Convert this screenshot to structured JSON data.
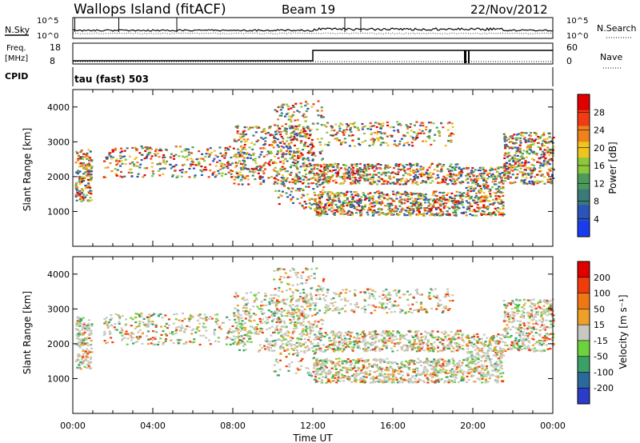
{
  "header": {
    "title": "Wallops Island (fitACF)",
    "beam": "Beam 19",
    "date": "22/Nov/2012"
  },
  "noise_panel": {
    "left_label": "N.Sky",
    "right_label": "N.Search",
    "tick_top": "10^5",
    "tick_bottom": "10^0"
  },
  "freq_panel": {
    "left_label_1": "Freq.",
    "left_label_2": "[MHz]",
    "right_label": "Nave",
    "left_ticks": [
      "18",
      "8"
    ],
    "right_ticks": [
      "60",
      "0"
    ],
    "cpid_label": "CPID",
    "mode": "tau (fast) 503"
  },
  "colors": {
    "power_scale": [
      "#1a3cf0",
      "#2a54b8",
      "#3a7a78",
      "#4c9a5a",
      "#8cc83c",
      "#f0c41e",
      "#f0821e",
      "#f03c14",
      "#e00000"
    ],
    "velocity_scale": [
      "#2a3cc8",
      "#2a6a9a",
      "#3aa066",
      "#6ed23c",
      "#c8c8c0",
      "#f0a028",
      "#f07814",
      "#f03c0a",
      "#e00000"
    ]
  },
  "chart_data": [
    {
      "type": "heatmap",
      "name": "power",
      "xlabel": "",
      "ylabel": "Slant Range [km]",
      "x_ticks": [
        "00:00",
        "04:00",
        "08:00",
        "12:00",
        "16:00",
        "20:00",
        "00:00"
      ],
      "y_ticks": [
        1000,
        2000,
        3000,
        4000
      ],
      "ylim": [
        0,
        4500
      ],
      "colorbar": {
        "label": "Power [dB]",
        "ticks": [
          4,
          8,
          12,
          16,
          20,
          24,
          28
        ],
        "range": [
          0,
          32
        ]
      }
    },
    {
      "type": "heatmap",
      "name": "velocity",
      "xlabel": "Time UT",
      "ylabel": "Slant Range [km]",
      "x_ticks": [
        "00:00",
        "04:00",
        "08:00",
        "12:00",
        "16:00",
        "20:00",
        "00:00"
      ],
      "y_ticks": [
        1000,
        2000,
        3000,
        4000
      ],
      "ylim": [
        0,
        4500
      ],
      "colorbar": {
        "label": "Velocity [m s⁻¹]",
        "ticks": [
          200,
          100,
          50,
          15,
          -15,
          -50,
          -100,
          -200
        ]
      }
    }
  ]
}
